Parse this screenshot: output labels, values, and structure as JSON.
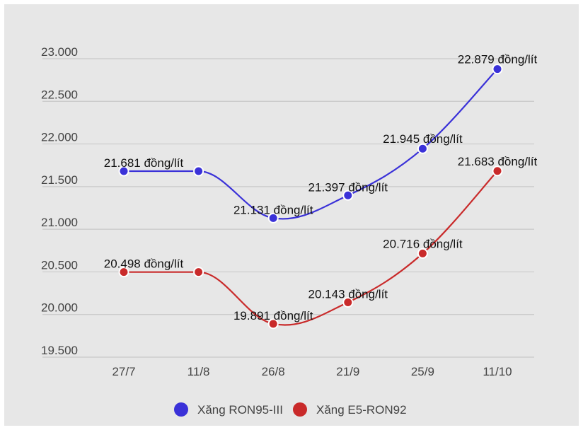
{
  "chart_data": {
    "type": "line",
    "categories": [
      "27/7",
      "11/8",
      "26/8",
      "21/9",
      "25/9",
      "11/10"
    ],
    "y_ticks": [
      "23.000",
      "22.500",
      "22.000",
      "21.500",
      "21.000",
      "20.500",
      "20.000",
      "19.500"
    ],
    "y_tick_values": [
      23000,
      22500,
      22000,
      21500,
      21000,
      20500,
      20000,
      19500
    ],
    "ylim": [
      19500,
      23000
    ],
    "grid": true,
    "legend_position": "bottom",
    "series": [
      {
        "name": "Xăng RON95-III",
        "color": "#3a31d8",
        "values": [
          21681,
          21681,
          21131,
          21397,
          21945,
          22879
        ],
        "labels": [
          "21.681 đồng/lít",
          "",
          "21.131 đồng/lít",
          "21.397 đồng/lít",
          "21.945 đồng/lít",
          "22.879 đồng/lít"
        ]
      },
      {
        "name": "Xăng E5-RON92",
        "color": "#c92a2a",
        "values": [
          20498,
          20498,
          19891,
          20143,
          20716,
          21683
        ],
        "labels": [
          "20.498 đồng/lít",
          "",
          "19.891 đồng/lít",
          "20.143 đồng/lít",
          "20.716 đồng/lít",
          "21.683 đồng/lít"
        ]
      }
    ]
  }
}
